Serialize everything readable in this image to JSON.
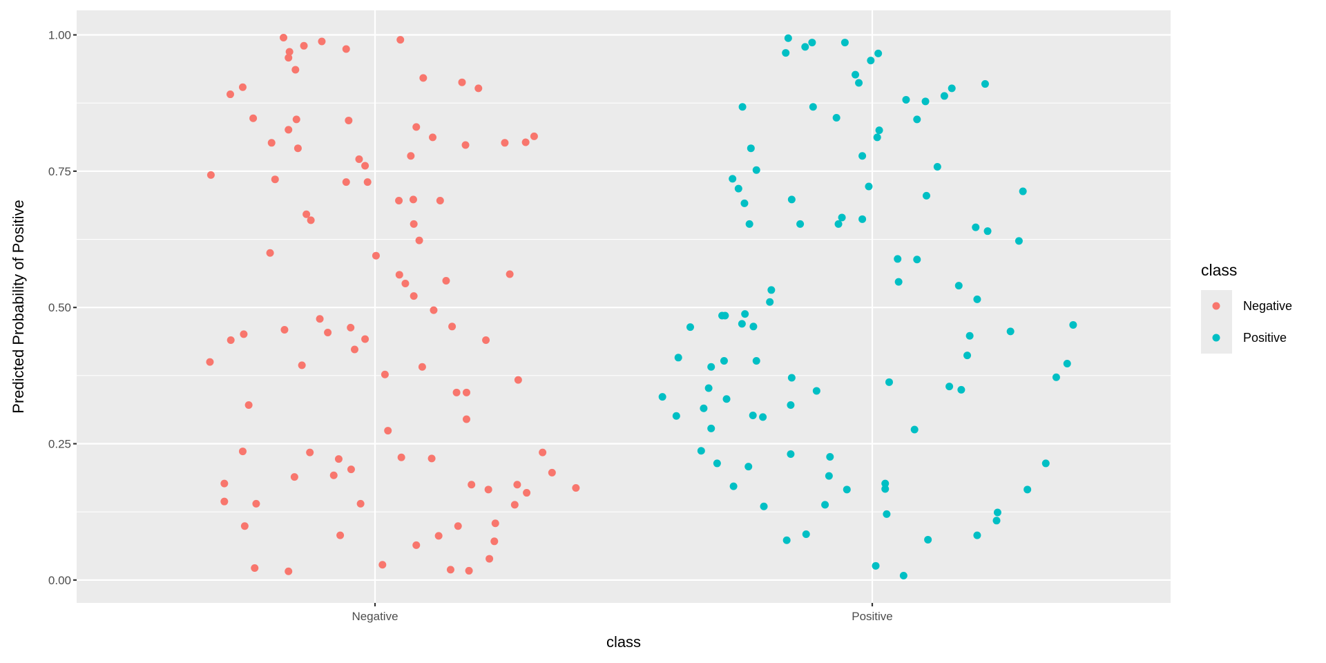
{
  "chart_data": {
    "type": "scatter",
    "subtype": "jitter",
    "title": "",
    "xlabel": "class",
    "ylabel": "Predicted Probability of Positive",
    "categories": [
      "Negative",
      "Positive"
    ],
    "xlim": [
      0.4,
      2.6
    ],
    "ylim": [
      -0.042,
      1.045
    ],
    "yticks": [
      0,
      0.25,
      0.5,
      0.75,
      1
    ],
    "ytick_labels": [
      "0.00",
      "0.25",
      "0.50",
      "0.75",
      "1.00"
    ],
    "grid": true,
    "legend": {
      "title": "class",
      "position": "right",
      "entries": [
        "Negative",
        "Positive"
      ]
    },
    "series": [
      {
        "name": "Negative",
        "color": "#F8766D",
        "category": 1,
        "x_jitter": [
          -0.184,
          0.051,
          -0.107,
          -0.058,
          -0.172,
          -0.174,
          -0.143,
          -0.16,
          -0.291,
          -0.266,
          0.097,
          0.175,
          0.208,
          -0.245,
          -0.158,
          -0.053,
          -0.174,
          0.083,
          0.116,
          0.32,
          0.261,
          0.182,
          0.303,
          -0.208,
          -0.155,
          0.072,
          -0.032,
          -0.02,
          -0.33,
          -0.201,
          -0.058,
          -0.015,
          0.048,
          0.077,
          0.131,
          -0.138,
          -0.129,
          0.078,
          0.089,
          -0.211,
          0.002,
          0.049,
          0.061,
          0.271,
          0.143,
          0.078,
          0.118,
          -0.182,
          -0.111,
          -0.049,
          -0.095,
          0.155,
          -0.02,
          -0.29,
          -0.264,
          -0.332,
          -0.041,
          0.223,
          -0.147,
          0.095,
          0.02,
          0.164,
          0.184,
          0.288,
          -0.254,
          0.184,
          0.026,
          -0.266,
          -0.131,
          0.053,
          0.114,
          -0.073,
          0.337,
          -0.048,
          -0.083,
          0.356,
          -0.162,
          -0.303,
          0.194,
          0.228,
          0.286,
          0.404,
          -0.303,
          -0.239,
          -0.029,
          0.305,
          0.281,
          0.242,
          -0.262,
          0.167,
          -0.07,
          0.128,
          0.24,
          0.083,
          0.015,
          0.23,
          -0.242,
          -0.174,
          0.152,
          0.189
        ],
        "y": [
          0.995,
          0.991,
          0.988,
          0.974,
          0.969,
          0.958,
          0.98,
          0.936,
          0.891,
          0.904,
          0.921,
          0.913,
          0.902,
          0.847,
          0.845,
          0.843,
          0.826,
          0.831,
          0.812,
          0.814,
          0.802,
          0.798,
          0.803,
          0.802,
          0.792,
          0.778,
          0.772,
          0.76,
          0.743,
          0.735,
          0.73,
          0.73,
          0.696,
          0.698,
          0.696,
          0.671,
          0.66,
          0.653,
          0.623,
          0.6,
          0.595,
          0.56,
          0.544,
          0.561,
          0.549,
          0.521,
          0.495,
          0.459,
          0.479,
          0.463,
          0.454,
          0.465,
          0.442,
          0.44,
          0.451,
          0.4,
          0.423,
          0.44,
          0.394,
          0.391,
          0.377,
          0.344,
          0.344,
          0.367,
          0.321,
          0.295,
          0.274,
          0.236,
          0.234,
          0.225,
          0.223,
          0.222,
          0.234,
          0.203,
          0.192,
          0.197,
          0.189,
          0.177,
          0.175,
          0.166,
          0.175,
          0.169,
          0.144,
          0.14,
          0.14,
          0.16,
          0.138,
          0.104,
          0.099,
          0.099,
          0.082,
          0.081,
          0.071,
          0.064,
          0.028,
          0.039,
          0.022,
          0.016,
          0.019,
          0.017
        ]
      },
      {
        "name": "Positive",
        "color": "#00BFC4",
        "category": 2,
        "x_jitter": [
          -0.169,
          -0.121,
          -0.135,
          -0.055,
          -0.174,
          0.012,
          -0.003,
          -0.034,
          -0.027,
          0.227,
          0.16,
          0.145,
          0.068,
          0.107,
          -0.261,
          -0.119,
          -0.072,
          0.09,
          0.014,
          0.01,
          -0.244,
          -0.02,
          -0.233,
          0.131,
          -0.281,
          -0.269,
          -0.007,
          0.303,
          0.109,
          -0.257,
          -0.162,
          -0.247,
          -0.145,
          -0.061,
          -0.068,
          -0.02,
          0.208,
          0.232,
          0.295,
          0.051,
          0.09,
          0.053,
          -0.203,
          0.174,
          -0.206,
          0.211,
          -0.302,
          -0.296,
          -0.256,
          -0.262,
          -0.239,
          -0.366,
          0.404,
          0.278,
          0.196,
          -0.39,
          -0.233,
          -0.298,
          -0.324,
          0.191,
          0.392,
          0.37,
          -0.162,
          0.034,
          -0.329,
          -0.112,
          0.155,
          0.179,
          -0.422,
          -0.293,
          -0.339,
          -0.164,
          -0.394,
          -0.24,
          -0.22,
          -0.324,
          0.085,
          -0.344,
          -0.164,
          -0.085,
          -0.312,
          0.349,
          -0.249,
          -0.087,
          -0.279,
          0.026,
          0.026,
          -0.051,
          0.312,
          -0.218,
          -0.095,
          0.029,
          0.252,
          0.25,
          0.211,
          -0.133,
          -0.172,
          0.112,
          0.007,
          0.063
        ],
        "y": [
          0.994,
          0.986,
          0.978,
          0.986,
          0.967,
          0.966,
          0.953,
          0.927,
          0.912,
          0.91,
          0.902,
          0.888,
          0.881,
          0.878,
          0.868,
          0.868,
          0.848,
          0.845,
          0.825,
          0.812,
          0.792,
          0.778,
          0.752,
          0.758,
          0.736,
          0.718,
          0.722,
          0.713,
          0.705,
          0.691,
          0.698,
          0.653,
          0.653,
          0.665,
          0.653,
          0.662,
          0.647,
          0.64,
          0.622,
          0.589,
          0.588,
          0.547,
          0.532,
          0.54,
          0.51,
          0.515,
          0.485,
          0.485,
          0.488,
          0.47,
          0.465,
          0.464,
          0.468,
          0.456,
          0.448,
          0.408,
          0.402,
          0.402,
          0.391,
          0.412,
          0.397,
          0.372,
          0.371,
          0.363,
          0.352,
          0.347,
          0.355,
          0.349,
          0.336,
          0.332,
          0.315,
          0.321,
          0.301,
          0.302,
          0.299,
          0.278,
          0.276,
          0.237,
          0.231,
          0.226,
          0.214,
          0.214,
          0.208,
          0.191,
          0.172,
          0.177,
          0.167,
          0.166,
          0.166,
          0.135,
          0.138,
          0.121,
          0.124,
          0.109,
          0.082,
          0.084,
          0.073,
          0.074,
          0.026,
          0.008
        ]
      }
    ]
  }
}
